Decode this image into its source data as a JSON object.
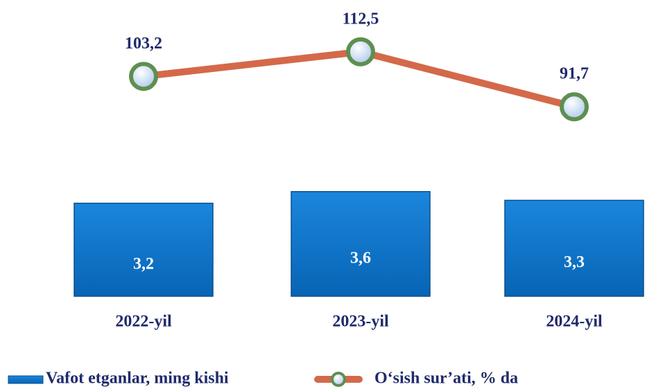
{
  "chart_data": {
    "type": "bar",
    "categories": [
      "2022-yil",
      "2023-yil",
      "2024-yil"
    ],
    "ylim": [
      0,
      10
    ],
    "y2lim": [
      20,
      130
    ],
    "series": [
      {
        "name": "Vafot etganlar, ming kishi",
        "color": "#0b72c9",
        "values": [
          3.2,
          3.6,
          3.3
        ],
        "value_labels": [
          "3,2",
          "3,6",
          "3,3"
        ]
      },
      {
        "name": "O‘sish sur’ati, % da",
        "type": "line",
        "axis": "y2",
        "color": "#d4694a",
        "values": [
          103.2,
          112.5,
          91.7
        ],
        "value_labels": [
          "103,2",
          "112,5",
          "91,7"
        ]
      }
    ]
  }
}
